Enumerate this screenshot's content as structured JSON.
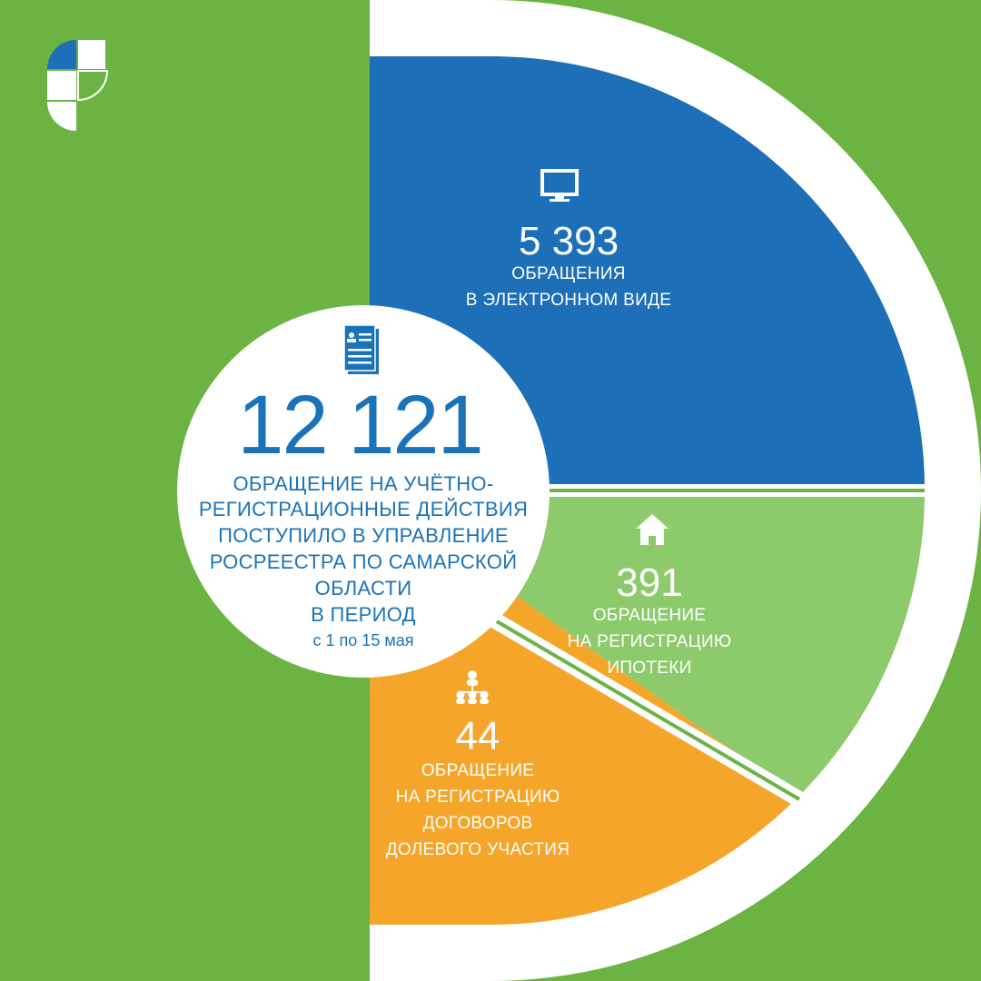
{
  "colors": {
    "background": "#6bb443",
    "ring": "#ffffff",
    "electronic": "#1d6fb8",
    "mortgage": "#8cca6b",
    "equity": "#f5a62a",
    "text_blue": "#1a73b9"
  },
  "total": {
    "value": "12 121",
    "lines": [
      "ОБРАЩЕНИЕ НА УЧЁТНО-",
      "РЕГИСТРАЦИОННЫЕ ДЕЙСТВИЯ",
      "ПОСТУПИЛО В УПРАВЛЕНИЕ",
      "РОСРЕЕСТРА ПО САМАРСКОЙ",
      "ОБЛАСТИ",
      "В ПЕРИОД"
    ],
    "period": "с 1 по 15 мая",
    "icon": "document-icon"
  },
  "chart_data": {
    "type": "pie",
    "slices": [
      {
        "value": 5393,
        "display": "5 393",
        "lines": [
          "ОБРАЩЕНИЯ",
          "В ЭЛЕКТРОННОМ ВИДЕ"
        ],
        "icon": "monitor-icon",
        "color": "#1d6fb8"
      },
      {
        "value": 391,
        "display": "391",
        "lines": [
          "ОБРАЩЕНИЕ",
          "НА РЕГИСТРАЦИЮ",
          "ИПОТЕКИ"
        ],
        "icon": "house-icon",
        "color": "#8cca6b"
      },
      {
        "value": 44,
        "display": "44",
        "lines": [
          "ОБРАЩЕНИЕ",
          "НА РЕГИСТРАЦИЮ",
          "ДОГОВОРОВ",
          "ДОЛЕВОГО УЧАСТИЯ"
        ],
        "icon": "people-network-icon",
        "color": "#f5a62a"
      }
    ]
  },
  "logo": {
    "name": "rosreestr-logo-icon"
  }
}
